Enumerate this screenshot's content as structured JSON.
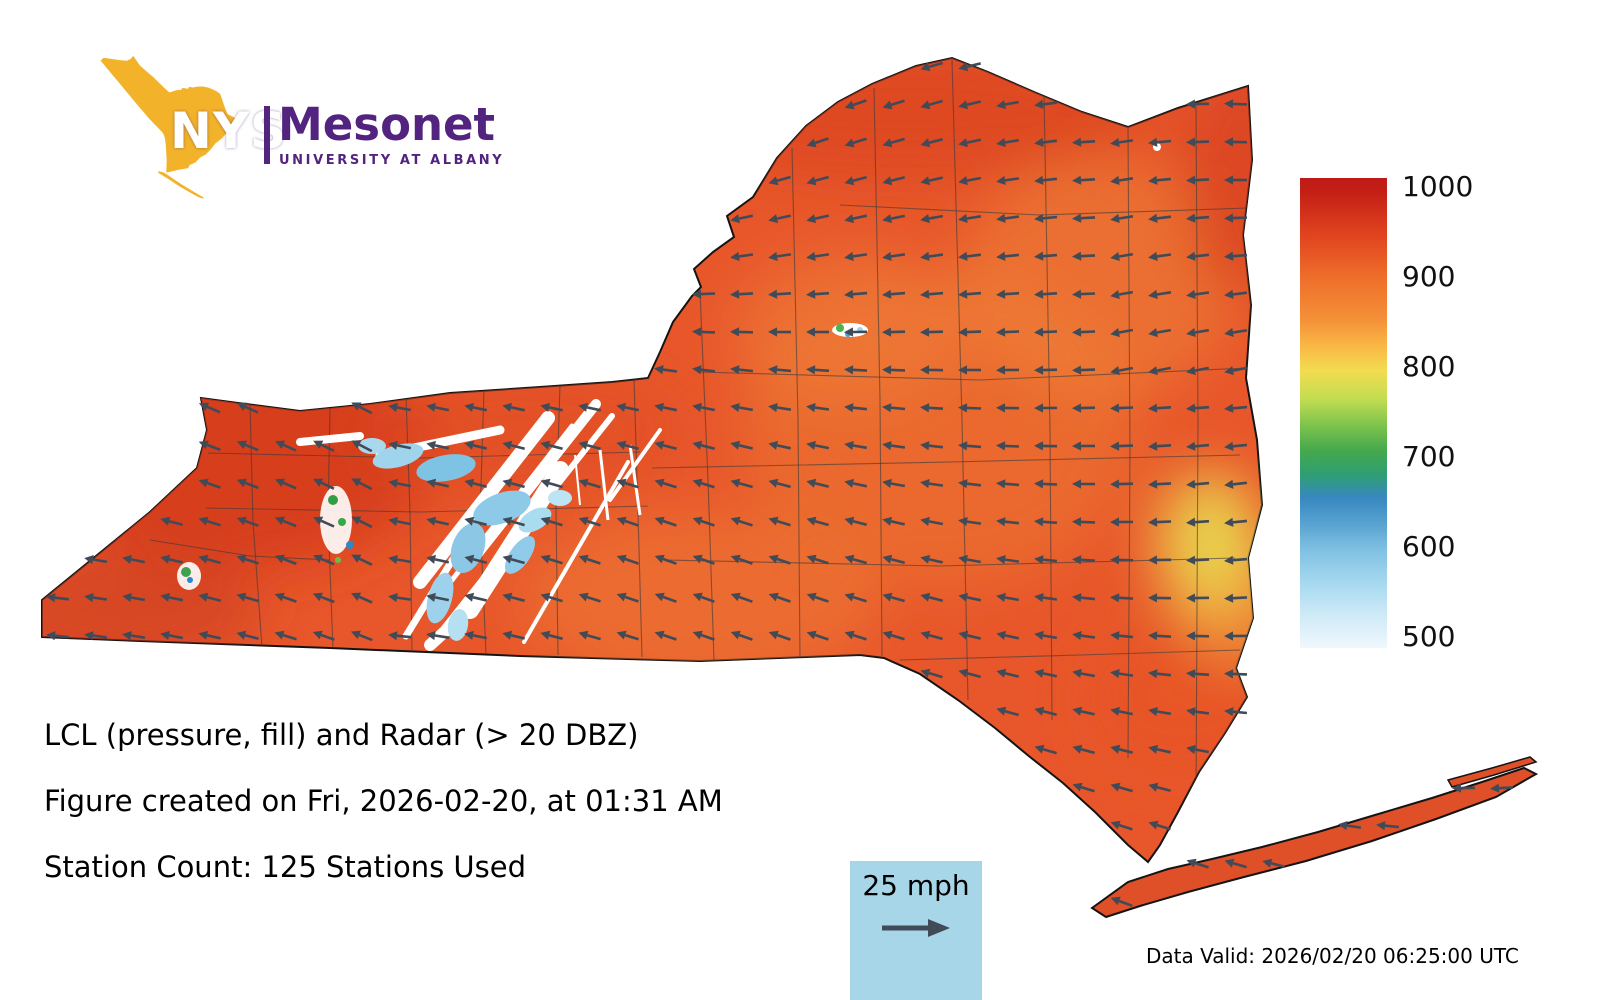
{
  "logo": {
    "acronym": "NYS",
    "name": "Mesonet",
    "subtitle": "UNIVERSITY AT ALBANY",
    "colors": {
      "state_gold": "#F2B32B",
      "purple": "#52247F"
    }
  },
  "figure": {
    "title": "LCL (pressure, fill) and Radar (> 20 DBZ)",
    "created": "Figure created on Fri, 2026-02-20, at 01:31 AM",
    "station_count": "Station Count: 125 Stations Used",
    "data_valid": "Data Valid: 2026/02/20 06:25:00 UTC"
  },
  "wind_legend": {
    "label": "25 mph",
    "box_color": "#A7D6E8",
    "arrow_color": "#414B57"
  },
  "colorbar": {
    "ticks": [
      "1000",
      "900",
      "800",
      "700",
      "600",
      "500"
    ],
    "value_range": [
      500,
      1000
    ]
  },
  "map": {
    "region": "New York State",
    "fill_variable": "LCL (pressure)",
    "overlay": "Radar (> 20 DBZ)",
    "base_fill": "#E8572B",
    "wind_arrow_color": "#414B57"
  },
  "chart_data": {
    "type": "heatmap",
    "title": "LCL (pressure, fill) and Radar (> 20 DBZ)",
    "region": "New York State",
    "fill_variable": "LCL pressure",
    "colorbar_ticks": [
      1000,
      900,
      800,
      700,
      600,
      500
    ],
    "colorbar_range": [
      500,
      1000
    ],
    "colorbar_colors_top_to_bottom": [
      "#C41F16",
      "#E0431F",
      "#EE6D2A",
      "#F49038",
      "#F5DC50",
      "#84C64D",
      "#44A94D",
      "#2F9F72",
      "#3788C0",
      "#7FC0E2",
      "#A5D8EF",
      "#EFF8FD"
    ],
    "wind_reference": {
      "speed_label": "25 mph"
    },
    "stations_used": 125,
    "created": "Fri, 2026-02-20, at 01:31 AM",
    "data_valid_utc": "2026/02/20 06:25:00 UTC",
    "legend_position": "right",
    "notes": "LCL pressure field (orange/red ~900-1000) over NY with wind vector grid pointing mostly westward and radar echoes (white/blue band) across west-central NY"
  }
}
